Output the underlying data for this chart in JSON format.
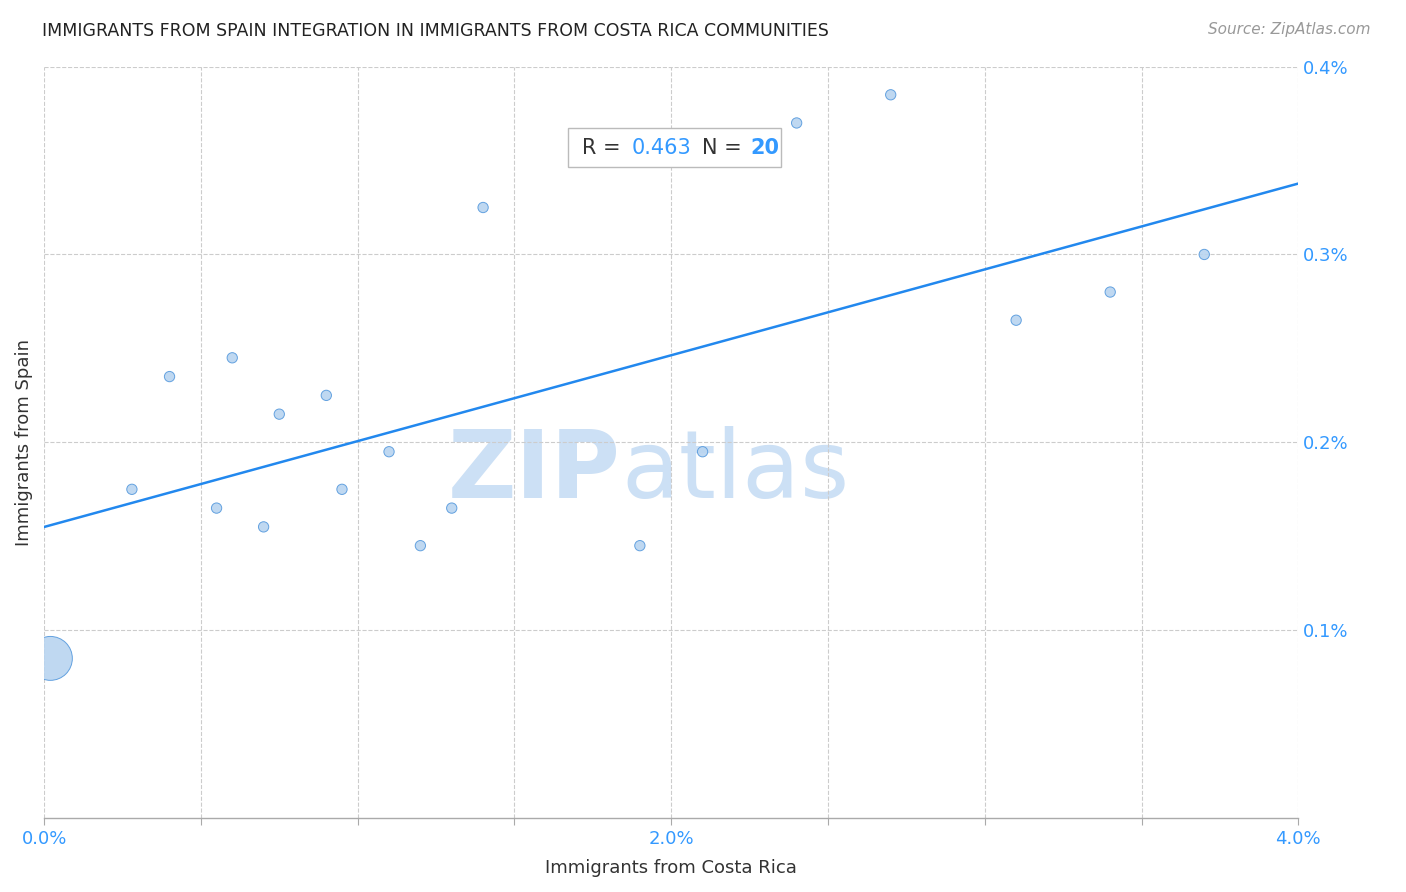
{
  "title": "IMMIGRANTS FROM SPAIN INTEGRATION IN IMMIGRANTS FROM COSTA RICA COMMUNITIES",
  "source": "Source: ZipAtlas.com",
  "xlabel": "Immigrants from Costa Rica",
  "ylabel": "Immigrants from Spain",
  "R": 0.463,
  "N": 20,
  "xlim": [
    0.0,
    0.04
  ],
  "ylim": [
    0.0,
    0.004
  ],
  "xticks": [
    0.0,
    0.005,
    0.01,
    0.015,
    0.02,
    0.025,
    0.03,
    0.035,
    0.04
  ],
  "xtick_labels_major": {
    "0.0": "0.0%",
    "0.02": "2.0%",
    "0.04": "4.0%"
  },
  "xtick_major": [
    0.0,
    0.02,
    0.04
  ],
  "ytick_major": [
    0.001,
    0.002,
    0.003,
    0.004
  ],
  "ytick_labels": [
    "0.1%",
    "0.2%",
    "0.3%",
    "0.4%"
  ],
  "scatter_x": [
    0.0002,
    0.0028,
    0.004,
    0.0055,
    0.006,
    0.007,
    0.0075,
    0.009,
    0.0095,
    0.011,
    0.012,
    0.013,
    0.014,
    0.019,
    0.021,
    0.024,
    0.027,
    0.031,
    0.034,
    0.037
  ],
  "scatter_y": [
    0.00085,
    0.00175,
    0.00235,
    0.00165,
    0.00245,
    0.00155,
    0.00215,
    0.00225,
    0.00175,
    0.00195,
    0.00145,
    0.00165,
    0.00325,
    0.00145,
    0.00195,
    0.0037,
    0.00385,
    0.00265,
    0.0028,
    0.003
  ],
  "scatter_sizes": [
    1000,
    55,
    55,
    55,
    55,
    55,
    55,
    55,
    55,
    55,
    55,
    55,
    55,
    55,
    55,
    55,
    55,
    55,
    55,
    55
  ],
  "scatter_color": "#b8d4f0",
  "scatter_edge_color": "#5599dd",
  "line_color": "#2288ee",
  "line_width": 1.8,
  "watermark_zip": "ZIP",
  "watermark_atlas": "atlas",
  "watermark_color": "#cce0f5",
  "grid_color": "#cccccc",
  "background_color": "#ffffff",
  "title_color": "#222222",
  "axis_label_color": "#333333",
  "tick_label_color": "#3399ff",
  "stat_label_color": "#333333",
  "stat_value_color": "#3399ff"
}
